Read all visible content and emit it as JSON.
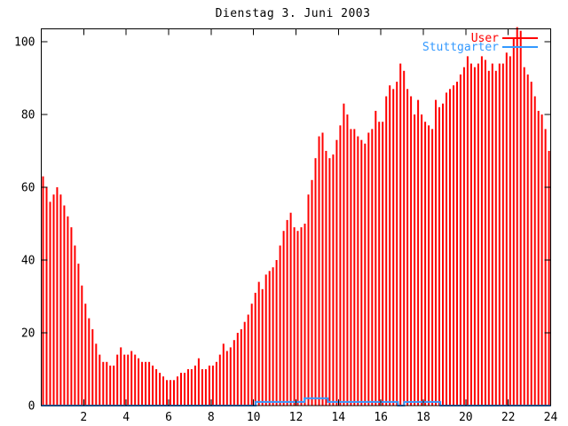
{
  "window": {
    "background": "#ffffff"
  },
  "chart_data": {
    "type": "bar",
    "subtype": "gnuplot-impulses-with-step-line",
    "title": "Dienstag 3. Juni 2003",
    "xlabel": "",
    "ylabel": "",
    "xlim": [
      0,
      24
    ],
    "ylim": [
      0,
      103.5
    ],
    "x_ticks": [
      2,
      4,
      6,
      8,
      10,
      12,
      14,
      16,
      18,
      20,
      22,
      24
    ],
    "y_ticks": [
      0,
      20,
      40,
      60,
      80,
      100
    ],
    "grid": false,
    "legend_position": "top-right-inside",
    "sample_interval_minutes": 10,
    "series": [
      {
        "name": "User",
        "style": "impulses",
        "color": "#ff0000",
        "start_hour": 0.0833,
        "step_hours": 0.1667,
        "values": [
          63,
          60,
          56,
          58,
          60,
          58,
          55,
          52,
          49,
          44,
          39,
          33,
          28,
          24,
          21,
          17,
          14,
          12,
          12,
          11,
          11,
          14,
          16,
          14,
          14,
          15,
          14,
          13,
          12,
          12,
          12,
          11,
          10,
          9,
          8,
          7,
          7,
          7,
          8,
          9,
          9,
          10,
          10,
          11,
          13,
          10,
          10,
          11,
          11,
          12,
          14,
          17,
          15,
          16,
          18,
          20,
          21,
          23,
          25,
          28,
          31,
          34,
          32,
          36,
          37,
          38,
          40,
          44,
          48,
          51,
          53,
          49,
          48,
          49,
          50,
          58,
          62,
          68,
          74,
          75,
          70,
          68,
          69,
          73,
          77,
          83,
          80,
          76,
          76,
          74,
          73,
          72,
          75,
          76,
          81,
          78,
          78,
          85,
          88,
          87,
          89,
          94,
          92,
          87,
          85,
          80,
          84,
          80,
          78,
          77,
          76,
          84,
          82,
          83,
          86,
          87,
          88,
          89,
          91,
          93,
          96,
          94,
          93,
          94,
          96,
          95,
          92,
          94,
          92,
          94,
          94,
          97,
          96,
          101,
          104,
          103,
          93,
          91,
          89,
          85,
          81,
          80,
          76,
          70
        ]
      },
      {
        "name": "Stuttgarter",
        "style": "steps",
        "color": "#3399ff",
        "segments": [
          {
            "from": 0.0,
            "to": 10.1,
            "value": 0
          },
          {
            "from": 10.1,
            "to": 12.4,
            "value": 1
          },
          {
            "from": 12.4,
            "to": 13.5,
            "value": 2
          },
          {
            "from": 13.5,
            "to": 16.8,
            "value": 1
          },
          {
            "from": 16.8,
            "to": 17.1,
            "value": 0
          },
          {
            "from": 17.1,
            "to": 18.8,
            "value": 1
          },
          {
            "from": 18.8,
            "to": 24.0,
            "value": 0
          }
        ]
      }
    ]
  },
  "legend": {
    "entries": [
      {
        "label": "User",
        "color": "#ff0000"
      },
      {
        "label": "Stuttgarter",
        "color": "#3399ff"
      }
    ]
  },
  "colors": {
    "frame": "#000000",
    "text": "#000000",
    "user_red": "#ff0000",
    "stuttgarter_blue": "#3399ff",
    "background": "#ffffff"
  }
}
